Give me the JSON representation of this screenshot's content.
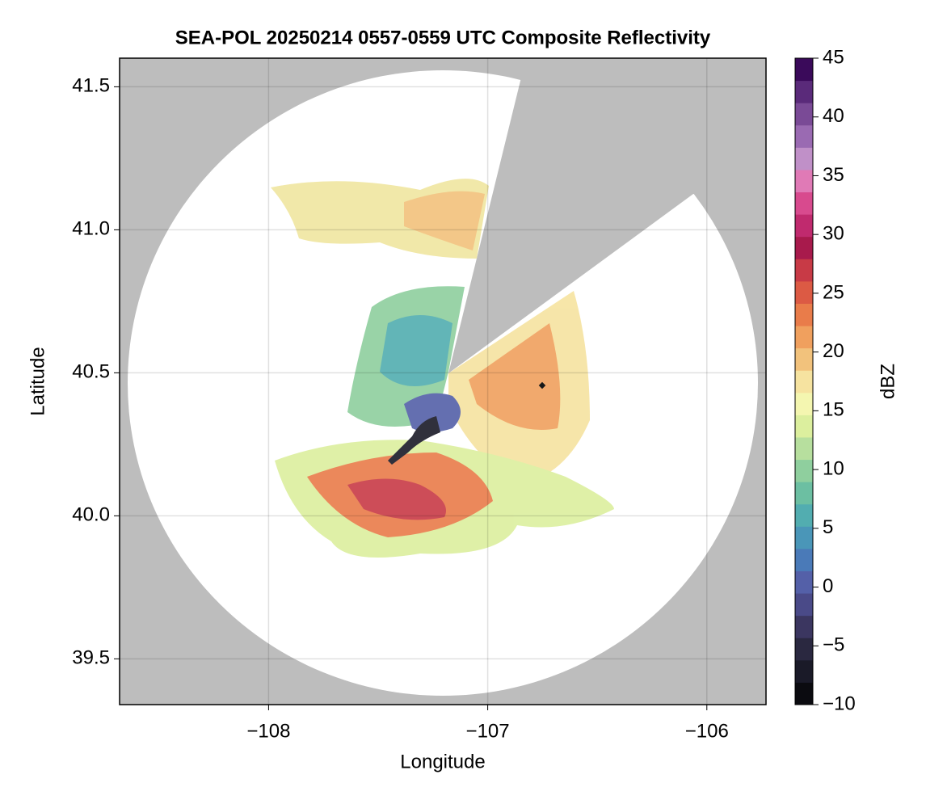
{
  "chart_data": {
    "type": "radar-map",
    "title": "SEA-POL 20250214 0557-0559 UTC Composite Reflectivity",
    "x_label": "Longitude",
    "y_label": "Latitude",
    "xlim": [
      -108.68,
      -105.73
    ],
    "xticks": [
      {
        "value": -108,
        "label": "−108"
      },
      {
        "value": -107,
        "label": "−107"
      },
      {
        "value": -106,
        "label": "−106"
      }
    ],
    "ylim": [
      39.34,
      41.6
    ],
    "yticks": [
      39.5,
      {
        "value": 40,
        "label": "40.0"
      },
      40.5,
      {
        "value": 41,
        "label": "41.0"
      },
      41.5
    ],
    "grid": true,
    "colorbar": {
      "label": "dBZ",
      "lim": [
        -10,
        45
      ],
      "ticks": [
        {
          "value": -10,
          "label": "−10"
        },
        {
          "value": -5,
          "label": "−5"
        },
        0,
        5,
        10,
        15,
        20,
        25,
        30,
        35,
        40,
        45
      ],
      "colors": [
        "#0b0b10",
        "#1a1a28",
        "#2a2840",
        "#3b3660",
        "#4a4a88",
        "#5460a8",
        "#4a7ab8",
        "#4a96b8",
        "#52adb0",
        "#6cbfa2",
        "#8fcf9e",
        "#b7df9e",
        "#dcef9e",
        "#f4f6b0",
        "#f6e3a0",
        "#f2c27c",
        "#f0a05e",
        "#e97c4a",
        "#dc5a44",
        "#c83a46",
        "#a81a4c",
        "#c02a6e",
        "#d84a8e",
        "#e07ab6",
        "#c090c8",
        "#9a6ab2",
        "#7a4a96",
        "#5a2a7a",
        "#3a0a5a"
      ]
    }
  }
}
